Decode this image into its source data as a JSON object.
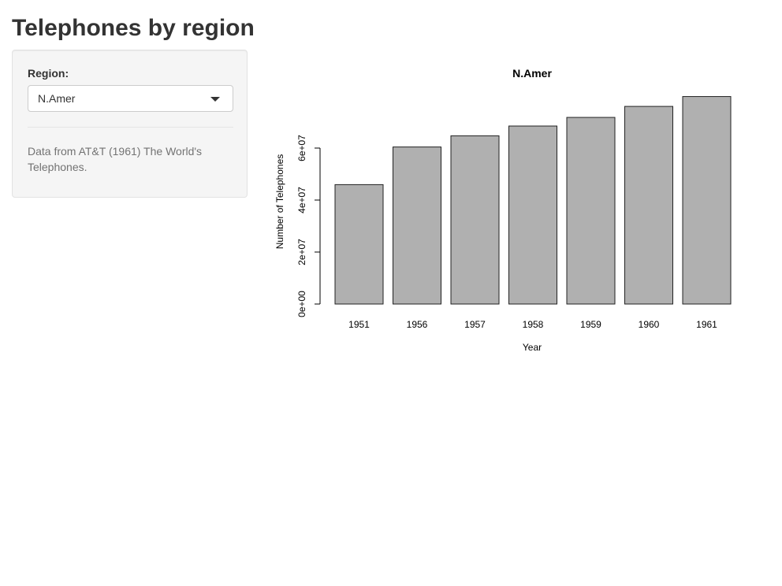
{
  "page": {
    "title": "Telephones by region"
  },
  "sidebar": {
    "region_label": "Region:",
    "region_selected": "N.Amer",
    "help_text": "Data from AT&T (1961) The World's Telephones."
  },
  "chart_data": {
    "type": "bar",
    "title": "N.Amer",
    "xlabel": "Year",
    "ylabel": "Number of Telephones",
    "categories": [
      "1951",
      "1956",
      "1957",
      "1958",
      "1959",
      "1960",
      "1961"
    ],
    "values": [
      45939000,
      60423000,
      64721000,
      68484000,
      71799000,
      76036000,
      79831000
    ],
    "ylim": [
      0,
      80000000
    ],
    "yticks": [
      {
        "value": 0,
        "label": "0e+00"
      },
      {
        "value": 20000000,
        "label": "2e+07"
      },
      {
        "value": 40000000,
        "label": "4e+07"
      },
      {
        "value": 60000000,
        "label": "6e+07"
      }
    ],
    "grid": false,
    "colors": {
      "bar_fill": "#b0b0b0",
      "bar_stroke": "#222222"
    }
  }
}
